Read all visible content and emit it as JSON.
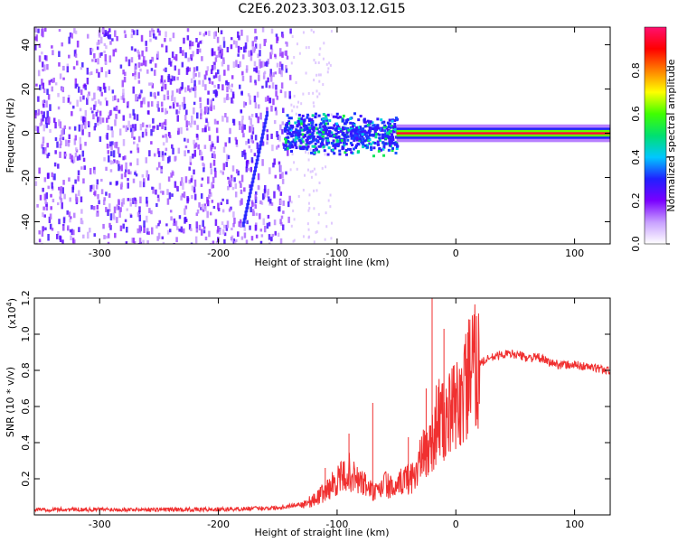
{
  "title": "C2E6.2023.303.03.12.G15",
  "chart_data": [
    {
      "type": "heatmap",
      "xlabel": "Height of straight line (km)",
      "ylabel": "Frequency (Hz)",
      "xlim": [
        -355,
        130
      ],
      "ylim": [
        -50,
        48
      ],
      "xticks": [
        -300,
        -200,
        -100,
        0,
        100
      ],
      "yticks": [
        -40,
        -20,
        0,
        20,
        40
      ],
      "xtick_labels": [
        "-300",
        "-200",
        "-100",
        "0",
        "100"
      ],
      "ytick_labels": [
        "-40",
        "-20",
        "0",
        "20",
        "40"
      ],
      "colorbar": {
        "label": "Normalized spectral amplitude",
        "range": [
          0,
          1
        ],
        "ticks": [
          0.0,
          0.2,
          0.4,
          0.6,
          0.8
        ],
        "tick_labels": [
          "0.0",
          "0.2",
          "0.4",
          "0.6",
          "0.8"
        ],
        "colors": [
          "#ffffff",
          "#c8a0ff",
          "#7a00ff",
          "#2020ff",
          "#00c8ff",
          "#00e070",
          "#40ff00",
          "#ffff00",
          "#ff8000",
          "#ff0000",
          "#ff1070"
        ]
      },
      "regions": [
        {
          "name": "noise",
          "x": [
            -355,
            -140
          ],
          "freq": [
            -50,
            48
          ],
          "amplitude": 0.1
        },
        {
          "name": "diagonal streak",
          "x": [
            -180,
            -160
          ],
          "freq": [
            -40,
            10
          ],
          "amplitude": 0.15
        },
        {
          "name": "onset cloud",
          "x": [
            -145,
            -50
          ],
          "freq": [
            -10,
            10
          ],
          "amplitude": 0.3
        },
        {
          "name": "carrier",
          "x": [
            -50,
            130
          ],
          "freq": [
            -1,
            1
          ],
          "amplitude": 0.95
        }
      ]
    },
    {
      "type": "line",
      "xlabel": "Height of straight line (km)",
      "ylabel": "SNR (10 * v/v)",
      "multiplier_label": "(x10",
      "multiplier_exp": "4",
      "multiplier_close": ")",
      "xlim": [
        -355,
        130
      ],
      "ylim": [
        0,
        12000
      ],
      "xticks": [
        -300,
        -200,
        -100,
        0,
        100
      ],
      "yticks": [
        2000,
        4000,
        6000,
        8000,
        10000,
        12000
      ],
      "xtick_labels": [
        "-300",
        "-200",
        "-100",
        "0",
        "100"
      ],
      "ytick_labels": [
        "0.2",
        "0.4",
        "0.6",
        "0.8",
        "1.0",
        "1.2"
      ],
      "color": "#f03030",
      "x": [
        -355,
        -300,
        -250,
        -200,
        -150,
        -130,
        -120,
        -110,
        -100,
        -95,
        -90,
        -85,
        -80,
        -75,
        -70,
        -65,
        -60,
        -55,
        -50,
        -45,
        -40,
        -35,
        -30,
        -25,
        -20,
        -15,
        -10,
        -5,
        0,
        5,
        10,
        15,
        20,
        30,
        40,
        50,
        60,
        70,
        80,
        90,
        100,
        110,
        120,
        130
      ],
      "y": [
        300,
        300,
        300,
        300,
        400,
        600,
        800,
        1300,
        1900,
        2100,
        2400,
        2000,
        1800,
        1600,
        1300,
        1200,
        1800,
        1500,
        1300,
        2000,
        2000,
        2200,
        3000,
        3500,
        4000,
        5500,
        5000,
        5500,
        6000,
        6500,
        7500,
        8000,
        8400,
        8700,
        8900,
        8900,
        8700,
        8700,
        8400,
        8300,
        8300,
        8200,
        8100,
        8000
      ],
      "spikes": [
        {
          "x": -110,
          "y": 2600
        },
        {
          "x": -90,
          "y": 4500
        },
        {
          "x": -70,
          "y": 6200
        },
        {
          "x": -40,
          "y": 4300
        },
        {
          "x": -25,
          "y": 7000
        },
        {
          "x": -20,
          "y": 12000
        },
        {
          "x": -10,
          "y": 10300
        },
        {
          "x": 10,
          "y": 10100
        }
      ]
    }
  ]
}
